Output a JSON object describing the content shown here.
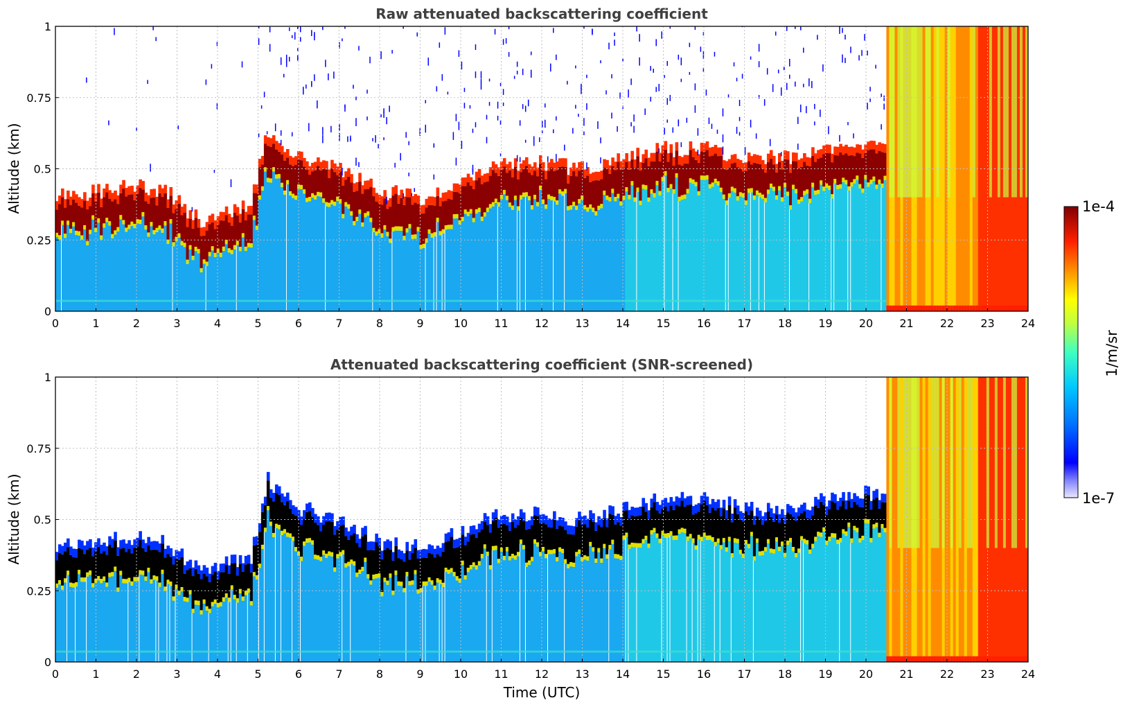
{
  "chart_data": [
    {
      "type": "heatmap",
      "title": "Raw attenuated backscattering coefficient",
      "xlabel": "",
      "ylabel": "Altitude (km)",
      "xlim": [
        0,
        24
      ],
      "ylim": [
        0,
        1
      ],
      "xticks": [
        "0",
        "1",
        "2",
        "3",
        "4",
        "5",
        "6",
        "7",
        "8",
        "9",
        "10",
        "11",
        "12",
        "13",
        "14",
        "15",
        "16",
        "17",
        "18",
        "19",
        "20",
        "21",
        "22",
        "23",
        "24"
      ],
      "yticks": [
        "0",
        "0.25",
        "0.5",
        "0.75",
        "1"
      ],
      "grid": true,
      "layer_top_km": {
        "time_utc": [
          0,
          1,
          2,
          2.7,
          3.5,
          4.8,
          5.2,
          6,
          7,
          8,
          9,
          10,
          11,
          12,
          13,
          14,
          15,
          16,
          17,
          18,
          19,
          20.4
        ],
        "altitude": [
          0.38,
          0.4,
          0.42,
          0.4,
          0.3,
          0.35,
          0.62,
          0.52,
          0.48,
          0.4,
          0.38,
          0.44,
          0.5,
          0.5,
          0.48,
          0.52,
          0.55,
          0.55,
          0.52,
          0.52,
          0.55,
          0.58
        ]
      },
      "cloud_period_utc": [
        20.5,
        24
      ]
    },
    {
      "type": "heatmap",
      "title": "Attenuated backscattering coefficient (SNR-screened)",
      "xlabel": "Time (UTC)",
      "ylabel": "Altitude (km)",
      "xlim": [
        0,
        24
      ],
      "ylim": [
        0,
        1
      ],
      "xticks": [
        "0",
        "1",
        "2",
        "3",
        "4",
        "5",
        "6",
        "7",
        "8",
        "9",
        "10",
        "11",
        "12",
        "13",
        "14",
        "15",
        "16",
        "17",
        "18",
        "19",
        "20",
        "21",
        "22",
        "23",
        "24"
      ],
      "yticks": [
        "0",
        "0.25",
        "0.5",
        "0.75",
        "1"
      ],
      "grid": true,
      "layer_top_km": {
        "time_utc": [
          0,
          1,
          2,
          2.7,
          3.5,
          4.8,
          5.2,
          6,
          7,
          8,
          9,
          10,
          11,
          12,
          13,
          14,
          15,
          16,
          17,
          18,
          19,
          20.4
        ],
        "altitude": [
          0.38,
          0.4,
          0.42,
          0.4,
          0.3,
          0.35,
          0.62,
          0.52,
          0.48,
          0.4,
          0.38,
          0.44,
          0.5,
          0.5,
          0.48,
          0.52,
          0.55,
          0.55,
          0.52,
          0.52,
          0.55,
          0.58
        ]
      },
      "cloud_period_utc": [
        20.5,
        24
      ]
    }
  ],
  "colorbar": {
    "label": "1/m/sr",
    "max_label": "1e-4",
    "min_label": "1e-7",
    "scale": "log",
    "colormap_stops": [
      "#ffffff",
      "#e6e6ff",
      "#0000ff",
      "#0080ff",
      "#00d0ff",
      "#40ffbf",
      "#c0ff40",
      "#ffff00",
      "#ff8000",
      "#ff2000",
      "#8b0000"
    ]
  },
  "colors": {
    "grid": "#bfbfbf",
    "saturated": "#000000"
  }
}
